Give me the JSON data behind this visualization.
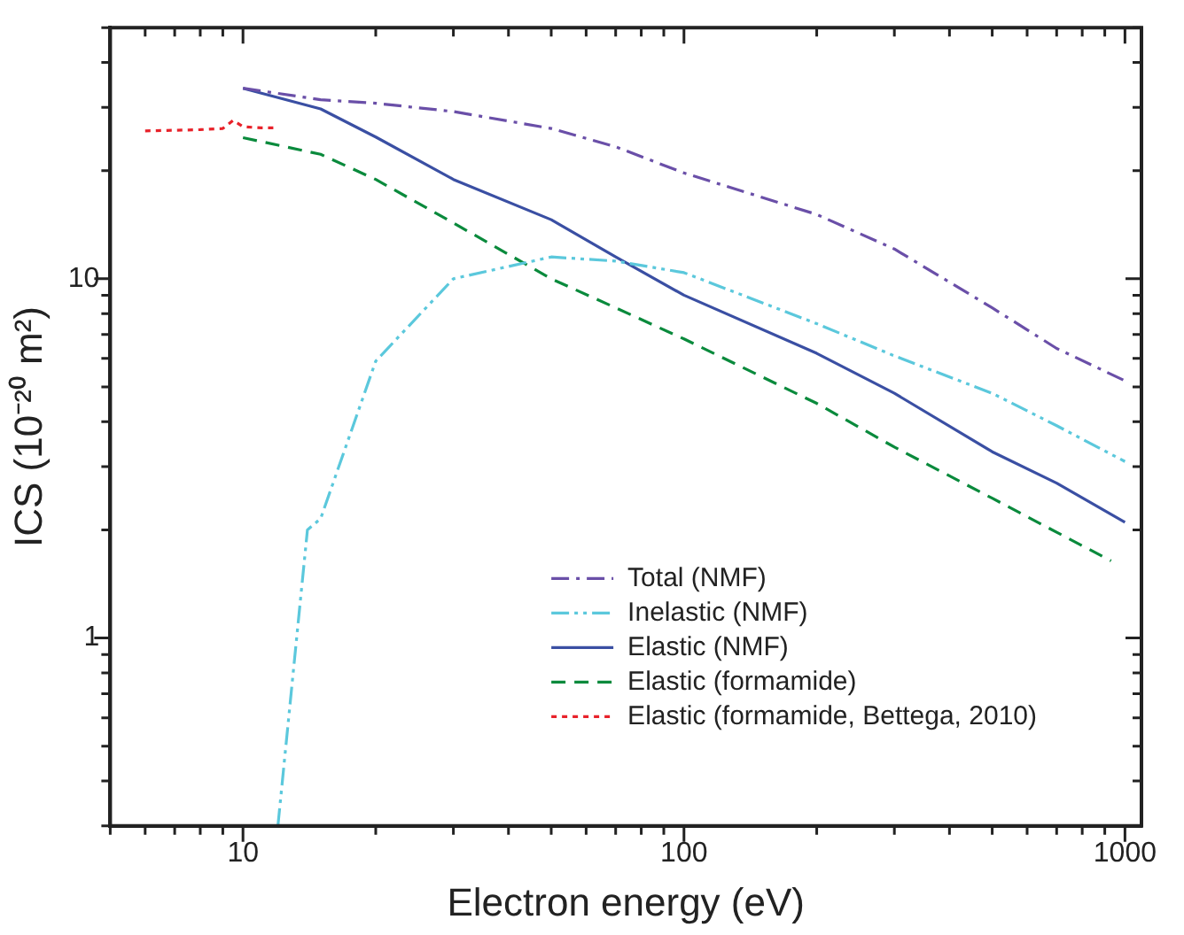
{
  "chart_data": {
    "type": "line",
    "xlabel": "Electron energy (eV)",
    "ylabel": "ICS (10⁻²⁰ m²)",
    "log": "xy",
    "grid": false,
    "legend": "bottom right",
    "marker": "none",
    "xlim": [
      5,
      1090
    ],
    "ylim": [
      0.3,
      50
    ],
    "xticks": [
      {
        "value": 5,
        "label": null
      },
      {
        "value": 6,
        "label": null
      },
      {
        "value": 7,
        "label": null
      },
      {
        "value": 8,
        "label": null
      },
      {
        "value": 9,
        "label": null
      },
      10,
      {
        "value": 20,
        "label": null
      },
      {
        "value": 30,
        "label": null
      },
      {
        "value": 40,
        "label": null
      },
      {
        "value": 50,
        "label": null
      },
      {
        "value": 60,
        "label": null
      },
      {
        "value": 70,
        "label": null
      },
      {
        "value": 80,
        "label": null
      },
      {
        "value": 90,
        "label": null
      },
      100,
      {
        "value": 200,
        "label": null
      },
      {
        "value": 300,
        "label": null
      },
      {
        "value": 400,
        "label": null
      },
      {
        "value": 500,
        "label": null
      },
      {
        "value": 600,
        "label": null
      },
      {
        "value": 700,
        "label": null
      },
      {
        "value": 800,
        "label": null
      },
      {
        "value": 900,
        "label": null
      },
      1000
    ],
    "yticks": [
      {
        "value": 0.3,
        "label": null
      },
      {
        "value": 0.4,
        "label": null
      },
      {
        "value": 0.5,
        "label": null
      },
      {
        "value": 0.6,
        "label": null
      },
      {
        "value": 0.7,
        "label": null
      },
      {
        "value": 0.8,
        "label": null
      },
      {
        "value": 0.9,
        "label": null
      },
      1,
      {
        "value": 2,
        "label": null
      },
      {
        "value": 3,
        "label": null
      },
      {
        "value": 4,
        "label": null
      },
      {
        "value": 5,
        "label": null
      },
      {
        "value": 6,
        "label": null
      },
      {
        "value": 7,
        "label": null
      },
      {
        "value": 8,
        "label": null
      },
      {
        "value": 9,
        "label": null
      },
      10,
      {
        "value": 20,
        "label": null
      },
      {
        "value": 30,
        "label": null
      },
      {
        "value": 40,
        "label": null
      },
      {
        "value": 50,
        "label": null
      }
    ],
    "series": [
      {
        "name": "Total (NMF)",
        "color": "#6a4fa8",
        "line_style": "dashdot",
        "x": [
          10,
          15,
          20,
          30,
          50,
          70,
          100,
          200,
          300,
          500,
          700,
          1000
        ],
        "values": [
          33.9,
          31.5,
          30.8,
          29.2,
          26.2,
          23.3,
          19.7,
          15.1,
          12.1,
          8.3,
          6.4,
          5.2
        ]
      },
      {
        "name": "Inelastic (NMF)",
        "color": "#5bc8dc",
        "line_style": "dashdotdot",
        "x": [
          12,
          14,
          15,
          20,
          30,
          50,
          70,
          100,
          200,
          300,
          500,
          700,
          1000
        ],
        "values": [
          0.3,
          2.0,
          2.15,
          5.9,
          10,
          11.5,
          11.2,
          10.4,
          7.5,
          6.1,
          4.8,
          3.9,
          3.1
        ]
      },
      {
        "name": "Elastic (NMF)",
        "color": "#3a4fa3",
        "line_style": "solid",
        "x": [
          10,
          15,
          20,
          30,
          50,
          70,
          100,
          200,
          300,
          500,
          700,
          1000
        ],
        "values": [
          33.9,
          29.7,
          24.8,
          18.9,
          14.6,
          11.5,
          9.0,
          6.2,
          4.8,
          3.3,
          2.7,
          2.1
        ]
      },
      {
        "name": "Elastic (formamide)",
        "color": "#0a8a3c",
        "line_style": "dashed",
        "x": [
          10,
          15,
          20,
          30,
          50,
          70,
          100,
          200,
          300,
          500,
          700,
          930
        ],
        "values": [
          24.7,
          22.2,
          18.9,
          14.3,
          10,
          8.3,
          6.8,
          4.5,
          3.4,
          2.45,
          1.97,
          1.64
        ]
      },
      {
        "name": "Elastic (formamide, Bettega, 2010)",
        "color": "#e8222a",
        "line_style": "dotted",
        "x": [
          6,
          7,
          8,
          9,
          9.5,
          10,
          11,
          12
        ],
        "values": [
          25.8,
          25.9,
          26.0,
          26.2,
          27.6,
          26.5,
          26.3,
          26.3
        ]
      }
    ]
  }
}
